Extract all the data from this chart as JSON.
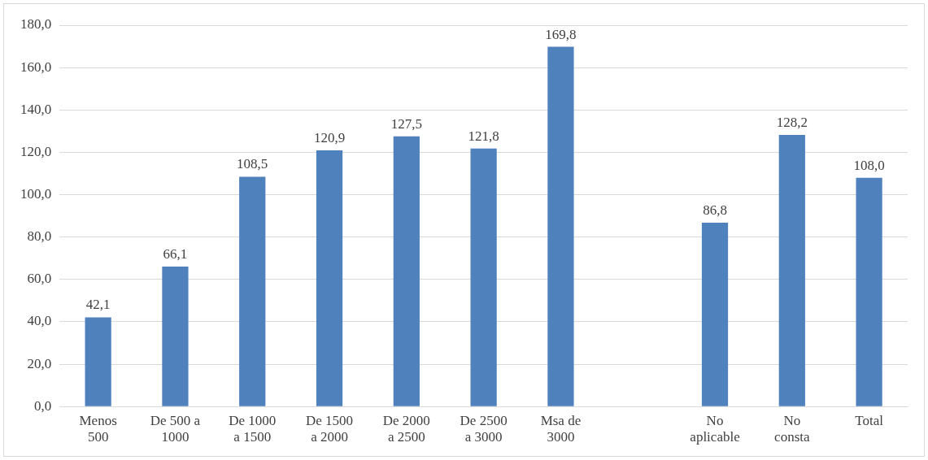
{
  "chart_data": {
    "type": "bar",
    "categories": [
      "Menos 500",
      "De 500 a 1000",
      "De 1000 a 1500",
      "De 1500 a 2000",
      "De 2000 a 2500",
      "De 2500 a 3000",
      "Msa de 3000",
      null,
      "No aplicable",
      "No consta",
      "Total"
    ],
    "values": [
      42.1,
      66.1,
      108.5,
      120.9,
      127.5,
      121.8,
      169.8,
      null,
      86.8,
      128.2,
      108.0
    ],
    "value_labels": [
      "42,1",
      "66,1",
      "108,5",
      "120,9",
      "127,5",
      "121,8",
      "169,8",
      null,
      "86,8",
      "128,2",
      "108,0"
    ],
    "color": "#4f81bd",
    "ylim": [
      0,
      180
    ],
    "yticks": [
      {
        "value": 0,
        "label": "0,0"
      },
      {
        "value": 20,
        "label": "20,0"
      },
      {
        "value": 40,
        "label": "40,0"
      },
      {
        "value": 60,
        "label": "60,0"
      },
      {
        "value": 80,
        "label": "80,0"
      },
      {
        "value": 100,
        "label": "100,0"
      },
      {
        "value": 120,
        "label": "120,0"
      },
      {
        "value": 140,
        "label": "140,0"
      },
      {
        "value": 160,
        "label": "160,0"
      },
      {
        "value": 180,
        "label": "180,0"
      }
    ],
    "grid": "y",
    "legend": false
  }
}
